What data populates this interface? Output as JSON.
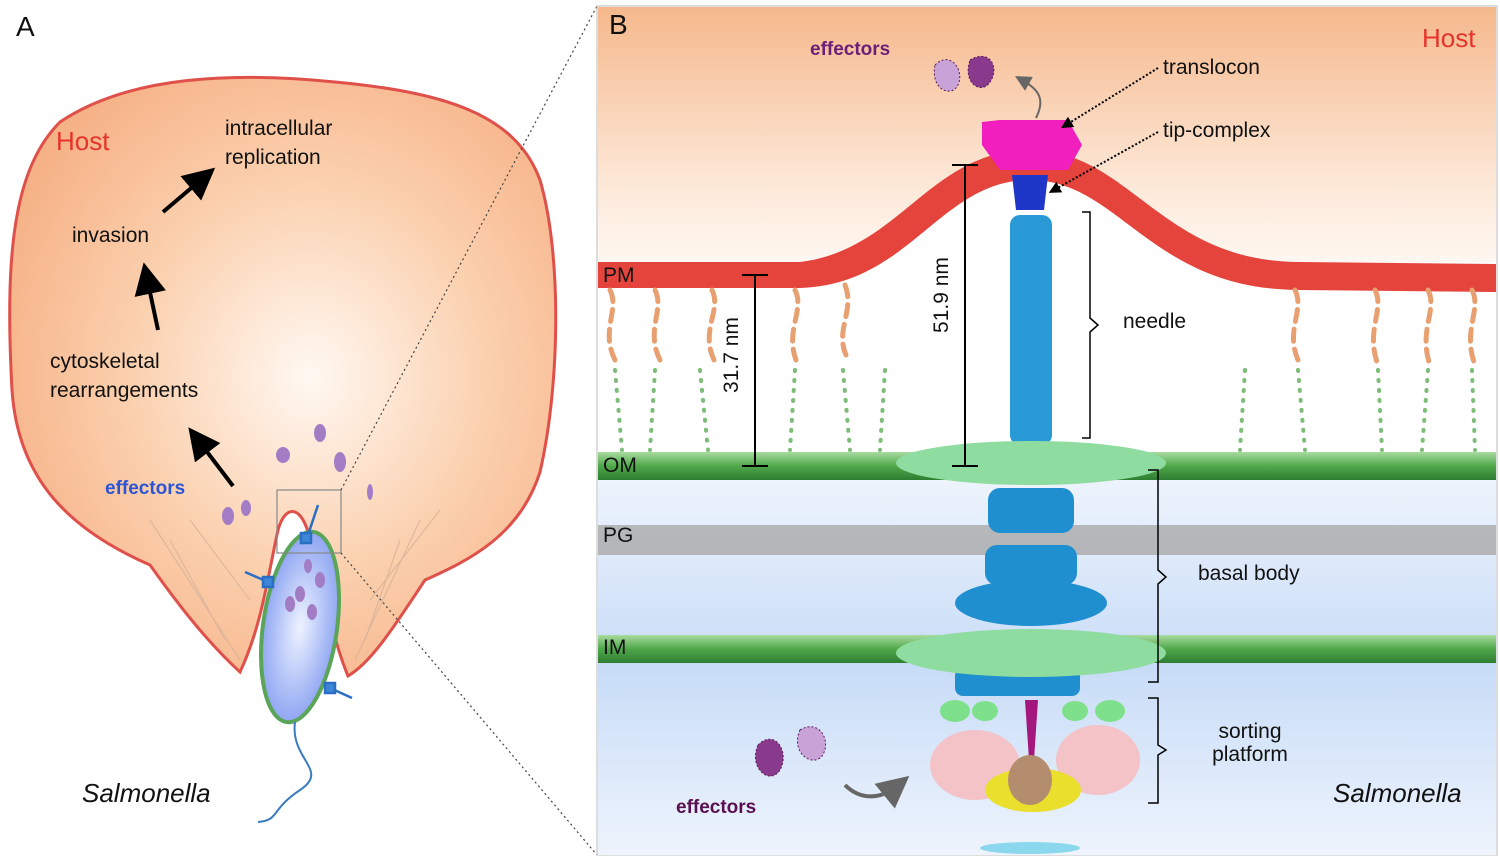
{
  "panel_a": {
    "letter": "A",
    "host_label": "Host",
    "replication": [
      "intracellular",
      "replication"
    ],
    "invasion": "invasion",
    "cytoskeletal": [
      "cytoskeletal",
      "rearrangements"
    ],
    "effectors": "effectors",
    "organism": "Salmonella"
  },
  "panel_b": {
    "letter": "B",
    "host_label": "Host",
    "effectors_top": "effectors",
    "effectors_bottom": "effectors",
    "organism": "Salmonella",
    "membranes": [
      "PM",
      "OM",
      "PG",
      "IM"
    ],
    "structures": {
      "translocon": "translocon",
      "tip_complex": "tip-complex",
      "needle": "needle",
      "basal_body": "basal body",
      "sorting_platform": [
        "sorting",
        "platform"
      ]
    },
    "measurements": [
      "31.7 nm",
      "51.9 nm"
    ]
  }
}
